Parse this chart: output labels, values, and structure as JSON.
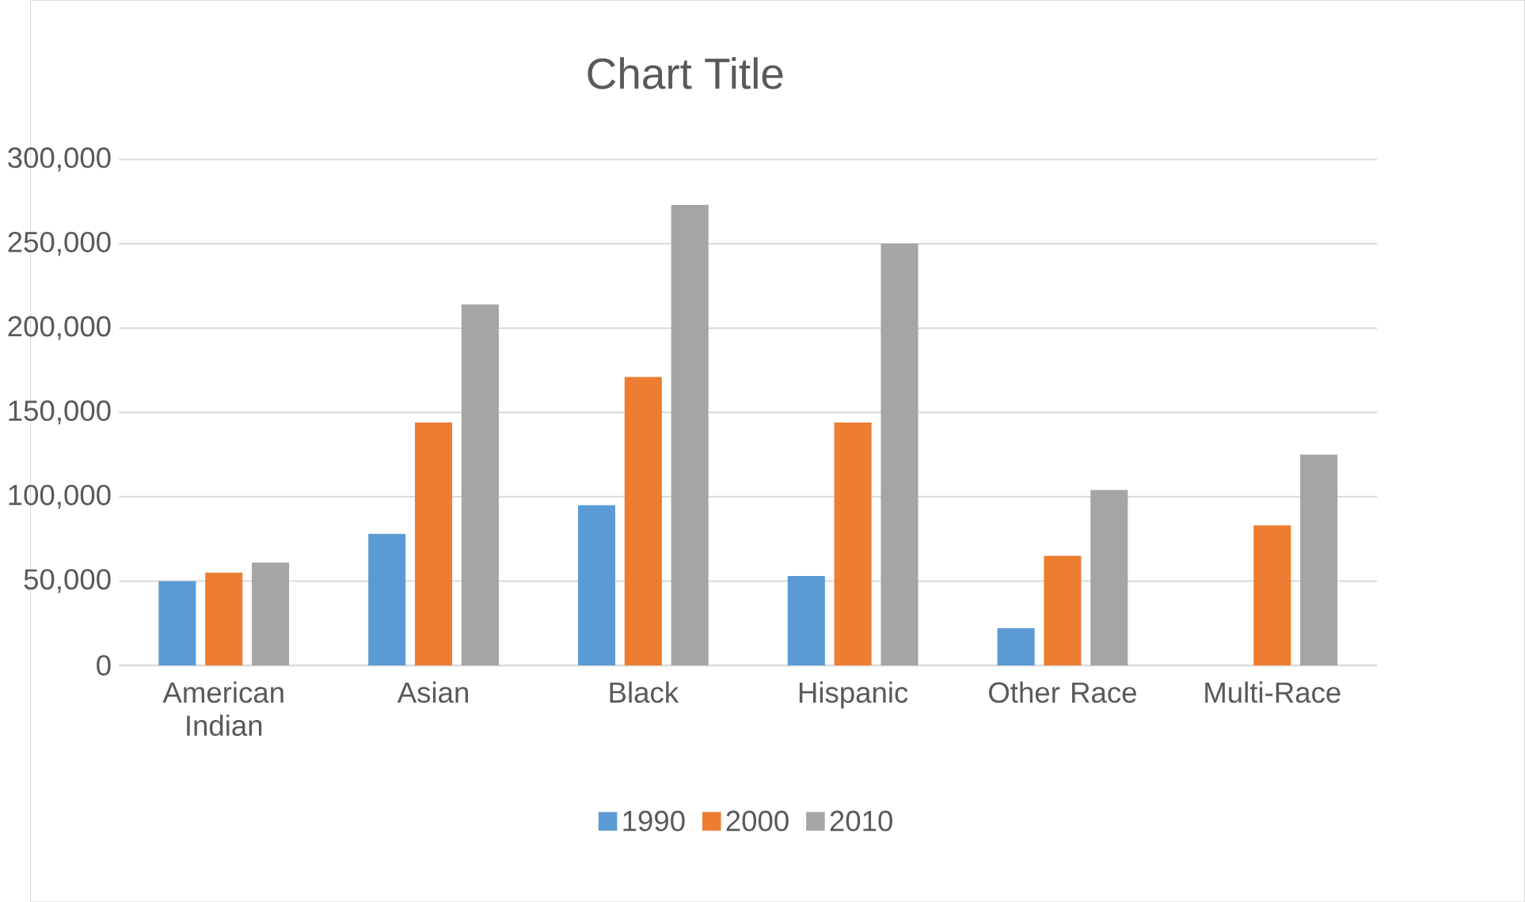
{
  "chart_data": {
    "type": "bar",
    "title": "Chart Title",
    "categories": [
      "American Indian",
      "Asian",
      "Black",
      "Hispanic",
      "Other Race",
      "Multi-Race"
    ],
    "series": [
      {
        "name": "1990",
        "color": "#5b9bd5",
        "values": [
          50000,
          78000,
          95000,
          53000,
          22000,
          null
        ]
      },
      {
        "name": "2000",
        "color": "#ed7d31",
        "values": [
          55000,
          144000,
          171000,
          144000,
          65000,
          83000
        ]
      },
      {
        "name": "2010",
        "color": "#a5a5a5",
        "values": [
          61000,
          214000,
          273000,
          250000,
          104000,
          125000
        ]
      }
    ],
    "ylim": [
      0,
      300000
    ],
    "yticks": [
      {
        "value": 0,
        "label": "0"
      },
      {
        "value": 50000,
        "label": "50,000"
      },
      {
        "value": 100000,
        "label": "100,000"
      },
      {
        "value": 150000,
        "label": "150,000"
      },
      {
        "value": 200000,
        "label": "200,000"
      },
      {
        "value": 250000,
        "label": "250,000"
      },
      {
        "value": 300000,
        "label": "300,000"
      }
    ],
    "grid": "y",
    "legend": "bottom"
  }
}
